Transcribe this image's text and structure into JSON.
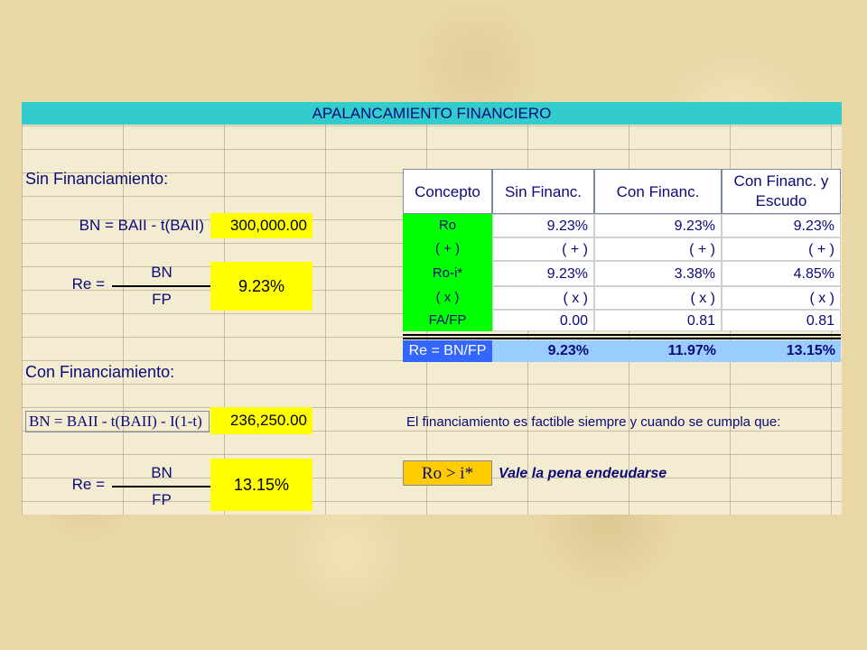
{
  "title": "APALANCAMIENTO FINANCIERO",
  "left": {
    "sin_title": "Sin Financiamiento:",
    "bn_formula_1": "BN = BAII - t(BAII)",
    "bn_value_1": "300,000.00",
    "re_label_1": "Re =",
    "num_1": "BN",
    "den_1": "FP",
    "re_value_1": "9.23%",
    "con_title": "Con Financiamiento:",
    "bn_formula_2": "BN = BAII - t(BAII) - I(1-t)",
    "bn_value_2": "236,250.00",
    "re_label_2": "Re =",
    "num_2": "BN",
    "den_2": "FP",
    "re_value_2": "13.15%"
  },
  "table": {
    "headers": [
      "Concepto",
      "Sin Financ.",
      "Con Financ.",
      "Con Financ. y",
      "Escudo"
    ],
    "rows": [
      {
        "concept": "Ro",
        "sin": "9.23%",
        "con": "9.23%",
        "escudo": "9.23%"
      },
      {
        "concept": "( + )",
        "sin": "( + )",
        "con": "( + )",
        "escudo": "( + )"
      },
      {
        "concept": "Ro-i*",
        "sin": "9.23%",
        "con": "3.38%",
        "escudo": "4.85%"
      },
      {
        "concept": "( x )",
        "sin": "( x )",
        "con": "( x )",
        "escudo": "( x )"
      },
      {
        "concept": "FA/FP",
        "sin": "0.00",
        "con": "0.81",
        "escudo": "0.81"
      }
    ],
    "result": {
      "concept": "Re = BN/FP",
      "sin": "9.23%",
      "con": "11.97%",
      "escudo": "13.15%"
    }
  },
  "note": "El financiamiento es factible siempre y cuando se cumpla que:",
  "condition": "Ro > i*",
  "conclusion": "Vale la pena endeudarse",
  "colors": {
    "title": "#33cccc",
    "yellow": "#ffff00",
    "green": "#00ff00",
    "blue_cell": "#99ccff",
    "blue_label": "#3366ff",
    "orange": "#ffcc00"
  }
}
